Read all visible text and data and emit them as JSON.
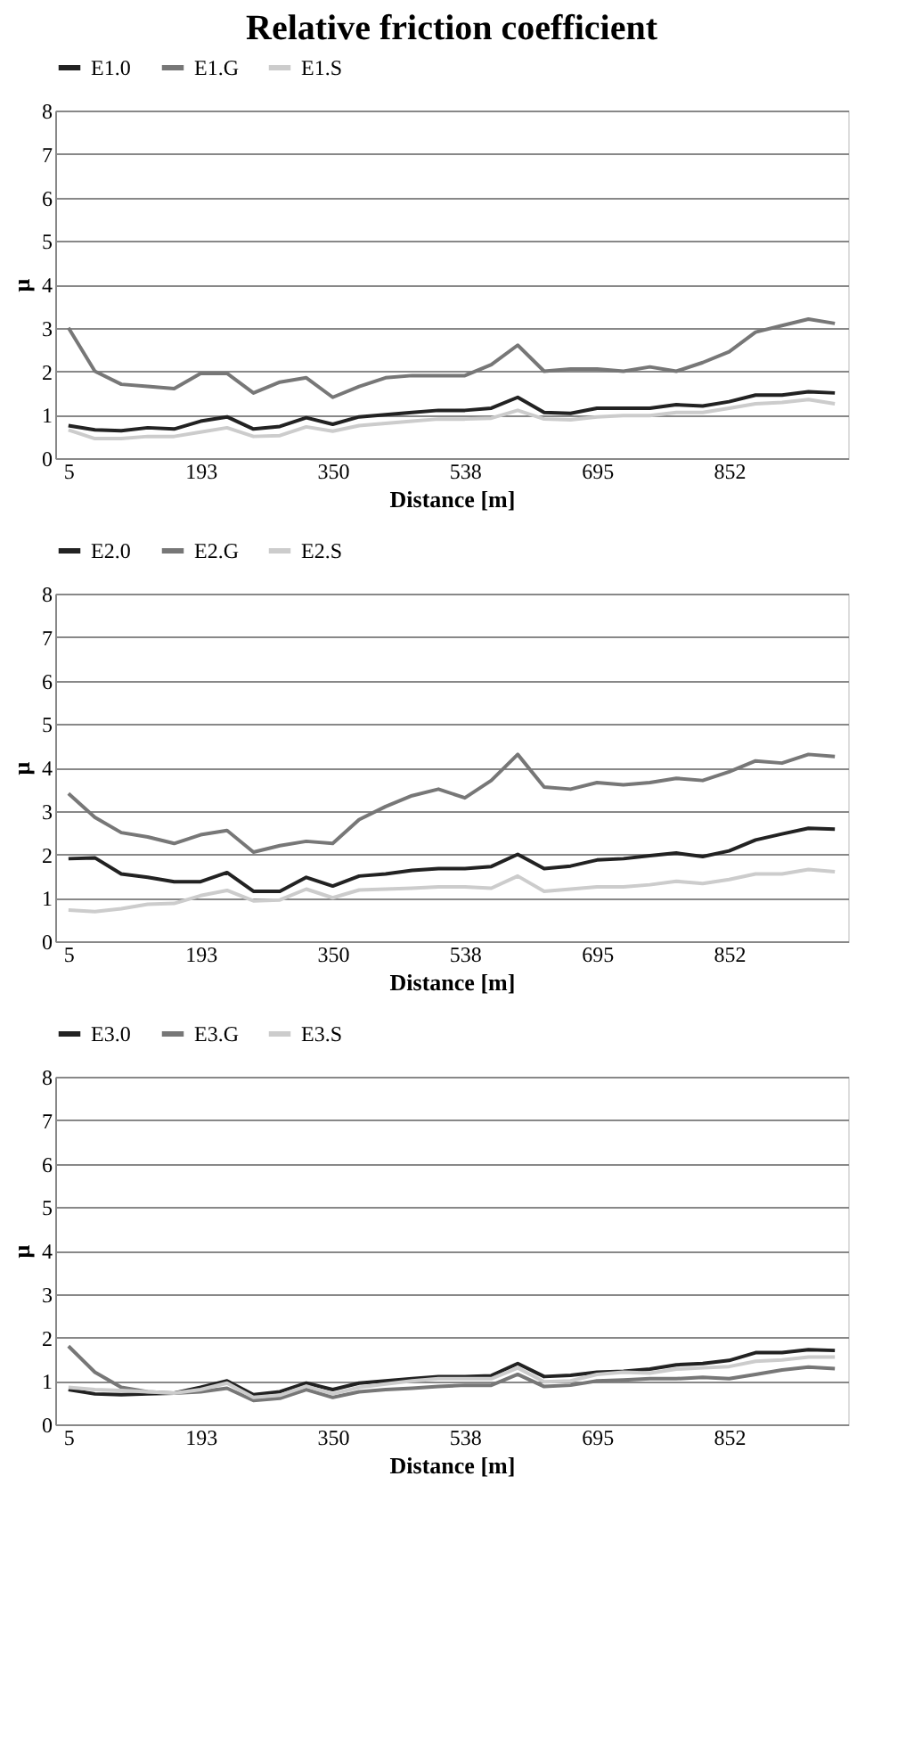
{
  "chart_data": [
    {
      "type": "line",
      "title": "Relative friction coefficient",
      "xlabel": "Distance [m]",
      "ylabel": "μ",
      "legend": "top",
      "grid": "y",
      "ylim": [
        0,
        8
      ],
      "yticks": [
        0,
        1,
        2,
        3,
        4,
        5,
        6,
        7,
        8
      ],
      "categories": [
        "5",
        null,
        null,
        null,
        null,
        "193",
        null,
        null,
        null,
        null,
        "350",
        null,
        null,
        null,
        null,
        "538",
        null,
        null,
        null,
        null,
        "695",
        null,
        null,
        null,
        null,
        "852",
        null,
        null,
        null,
        null
      ],
      "series": [
        {
          "name": "E1.0",
          "color": "#222222",
          "values": [
            0.75,
            0.65,
            0.63,
            0.7,
            0.67,
            0.85,
            0.95,
            0.67,
            0.73,
            0.93,
            0.78,
            0.95,
            1.0,
            1.05,
            1.1,
            1.1,
            1.15,
            1.4,
            1.05,
            1.03,
            1.15,
            1.15,
            1.15,
            1.23,
            1.2,
            1.3,
            1.45,
            1.45,
            1.53,
            1.5
          ]
        },
        {
          "name": "E1.G",
          "color": "#777777",
          "values": [
            3.0,
            2.0,
            1.7,
            1.65,
            1.6,
            1.95,
            1.95,
            1.5,
            1.75,
            1.85,
            1.4,
            1.65,
            1.85,
            1.9,
            1.9,
            1.9,
            2.15,
            2.6,
            2.0,
            2.05,
            2.05,
            2.0,
            2.1,
            2.0,
            2.2,
            2.45,
            2.9,
            3.05,
            3.2,
            3.1
          ]
        },
        {
          "name": "E1.S",
          "color": "#cccccc",
          "values": [
            0.65,
            0.45,
            0.45,
            0.5,
            0.5,
            0.6,
            0.7,
            0.5,
            0.52,
            0.72,
            0.62,
            0.75,
            0.8,
            0.85,
            0.9,
            0.9,
            0.92,
            1.1,
            0.9,
            0.88,
            0.95,
            0.98,
            0.98,
            1.05,
            1.05,
            1.15,
            1.25,
            1.28,
            1.35,
            1.25
          ]
        }
      ]
    },
    {
      "type": "line",
      "xlabel": "Distance [m]",
      "ylabel": "μ",
      "legend": "top",
      "grid": "y",
      "ylim": [
        0,
        8
      ],
      "yticks": [
        0,
        1,
        2,
        3,
        4,
        5,
        6,
        7,
        8
      ],
      "categories": [
        "5",
        null,
        null,
        null,
        null,
        "193",
        null,
        null,
        null,
        null,
        "350",
        null,
        null,
        null,
        null,
        "538",
        null,
        null,
        null,
        null,
        "695",
        null,
        null,
        null,
        null,
        "852",
        null,
        null,
        null,
        null
      ],
      "series": [
        {
          "name": "E2.0",
          "color": "#222222",
          "values": [
            1.9,
            1.92,
            1.55,
            1.47,
            1.37,
            1.37,
            1.58,
            1.15,
            1.15,
            1.47,
            1.27,
            1.5,
            1.55,
            1.63,
            1.67,
            1.67,
            1.72,
            2.0,
            1.67,
            1.73,
            1.87,
            1.9,
            1.97,
            2.03,
            1.95,
            2.08,
            2.33,
            2.47,
            2.6,
            2.58
          ]
        },
        {
          "name": "E2.G",
          "color": "#777777",
          "values": [
            3.4,
            2.85,
            2.5,
            2.4,
            2.25,
            2.45,
            2.55,
            2.05,
            2.2,
            2.3,
            2.25,
            2.8,
            3.1,
            3.35,
            3.5,
            3.3,
            3.7,
            4.3,
            3.55,
            3.5,
            3.65,
            3.6,
            3.65,
            3.75,
            3.7,
            3.9,
            4.15,
            4.1,
            4.3,
            4.25
          ]
        },
        {
          "name": "E2.S",
          "color": "#cccccc",
          "values": [
            0.72,
            0.68,
            0.75,
            0.85,
            0.87,
            1.05,
            1.17,
            0.93,
            0.95,
            1.2,
            1.0,
            1.18,
            1.2,
            1.22,
            1.25,
            1.25,
            1.22,
            1.5,
            1.15,
            1.2,
            1.25,
            1.25,
            1.3,
            1.38,
            1.33,
            1.42,
            1.55,
            1.55,
            1.65,
            1.6
          ]
        }
      ]
    },
    {
      "type": "line",
      "xlabel": "Distance [m]",
      "ylabel": "μ",
      "legend": "top",
      "grid": "y",
      "ylim": [
        0,
        8
      ],
      "yticks": [
        0,
        1,
        2,
        3,
        4,
        5,
        6,
        7,
        8
      ],
      "categories": [
        "5",
        null,
        null,
        null,
        null,
        "193",
        null,
        null,
        null,
        null,
        "350",
        null,
        null,
        null,
        null,
        "538",
        null,
        null,
        null,
        null,
        "695",
        null,
        null,
        null,
        null,
        "852",
        null,
        null,
        null,
        null
      ],
      "series": [
        {
          "name": "E3.0",
          "color": "#222222",
          "values": [
            0.8,
            0.7,
            0.68,
            0.7,
            0.72,
            0.85,
            1.0,
            0.68,
            0.75,
            0.95,
            0.8,
            0.95,
            1.0,
            1.05,
            1.1,
            1.1,
            1.12,
            1.4,
            1.1,
            1.13,
            1.2,
            1.22,
            1.27,
            1.37,
            1.4,
            1.47,
            1.65,
            1.65,
            1.72,
            1.7
          ]
        },
        {
          "name": "E3.G",
          "color": "#777777",
          "values": [
            1.8,
            1.2,
            0.85,
            0.75,
            0.72,
            0.75,
            0.83,
            0.55,
            0.6,
            0.8,
            0.62,
            0.75,
            0.8,
            0.83,
            0.87,
            0.9,
            0.9,
            1.15,
            0.87,
            0.9,
            1.0,
            1.02,
            1.05,
            1.05,
            1.08,
            1.05,
            1.15,
            1.25,
            1.32,
            1.28
          ]
        },
        {
          "name": "E3.S",
          "color": "#cccccc",
          "values": [
            0.85,
            0.8,
            0.78,
            0.75,
            0.72,
            0.8,
            0.95,
            0.62,
            0.67,
            0.88,
            0.7,
            0.85,
            0.93,
            1.0,
            1.05,
            1.05,
            1.05,
            1.3,
            0.98,
            1.0,
            1.15,
            1.2,
            1.18,
            1.27,
            1.3,
            1.33,
            1.45,
            1.48,
            1.55,
            1.55
          ]
        }
      ]
    }
  ]
}
